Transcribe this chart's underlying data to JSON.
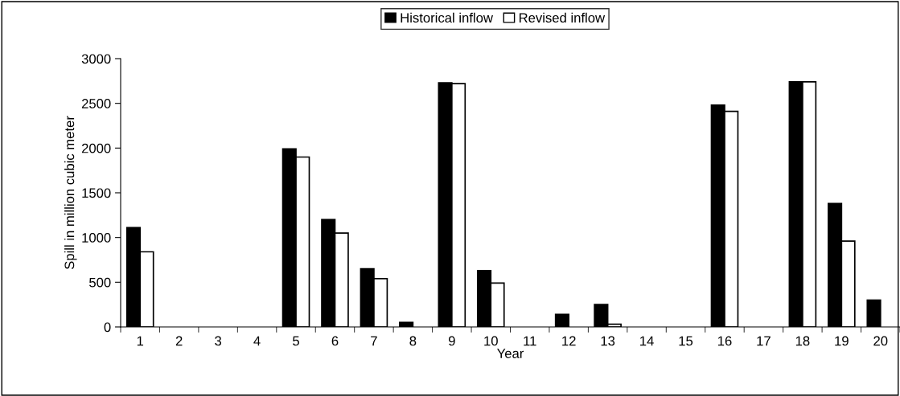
{
  "chart_data": {
    "type": "bar",
    "xlabel": "Year",
    "ylabel": "Spill in million cubic meter",
    "categories": [
      "1",
      "2",
      "3",
      "4",
      "5",
      "6",
      "7",
      "8",
      "9",
      "10",
      "11",
      "12",
      "13",
      "14",
      "15",
      "16",
      "17",
      "18",
      "19",
      "20"
    ],
    "series": [
      {
        "name": "Historical inflow",
        "color": "#000000",
        "values": [
          1110,
          0,
          0,
          0,
          1990,
          1200,
          650,
          50,
          2730,
          630,
          0,
          140,
          250,
          0,
          0,
          2480,
          0,
          2740,
          1380,
          300
        ]
      },
      {
        "name": "Revised inflow",
        "color": "#ffffff",
        "values": [
          840,
          0,
          0,
          0,
          1900,
          1050,
          540,
          0,
          2720,
          490,
          0,
          0,
          30,
          0,
          0,
          2410,
          0,
          2740,
          960,
          0
        ]
      }
    ],
    "ylim": [
      0,
      3000
    ],
    "yticks": [
      0,
      500,
      1000,
      1500,
      2000,
      2500,
      3000
    ],
    "grid": false,
    "legend": "top"
  }
}
